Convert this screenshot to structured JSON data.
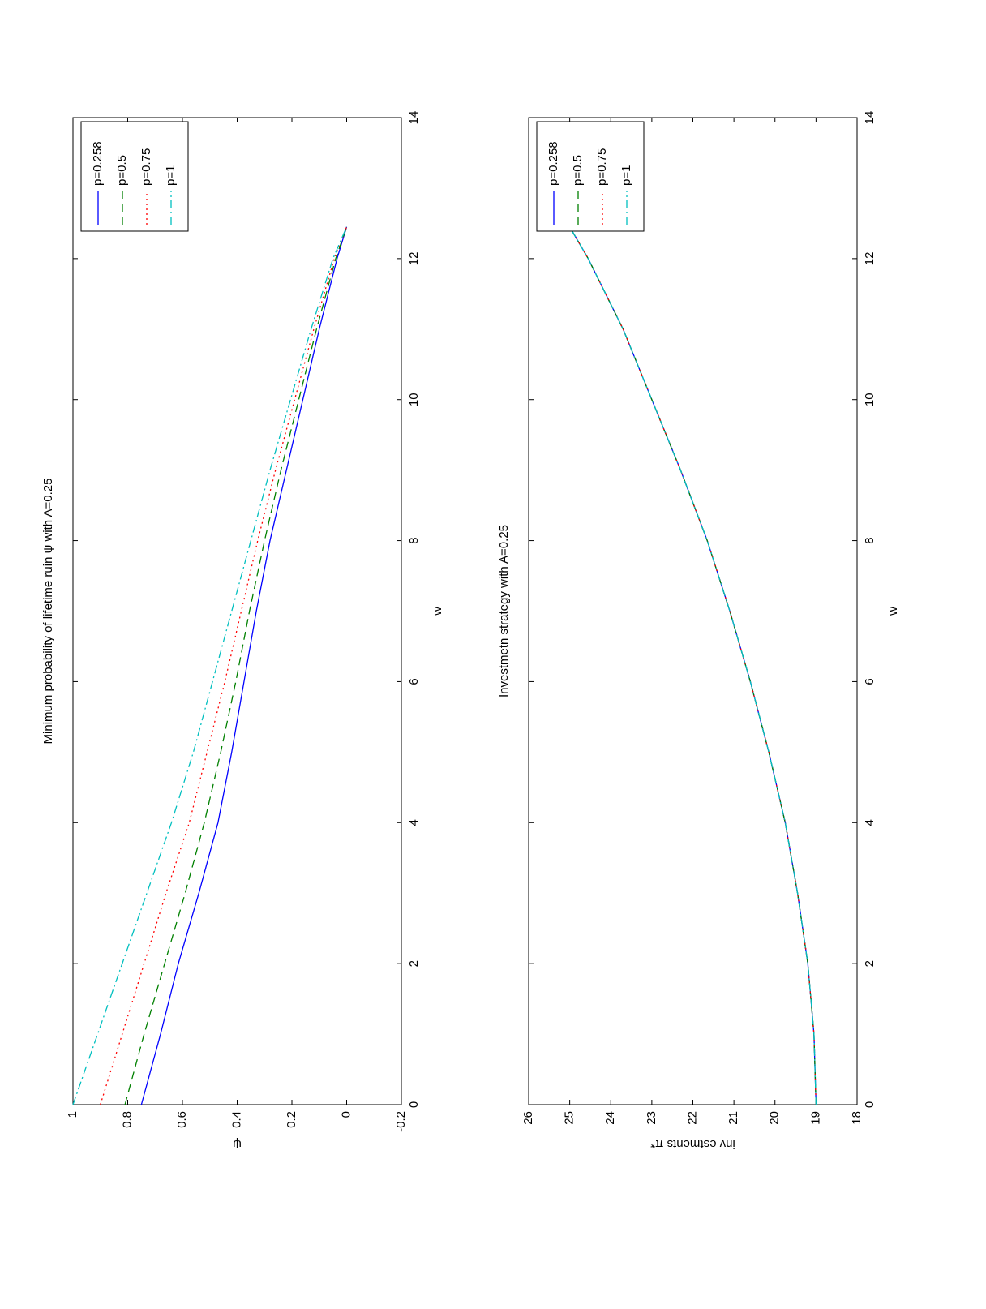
{
  "chart_data": [
    {
      "type": "line",
      "title": "Minimum probability of lifetime ruin ψ with A=0.25",
      "xlabel": "w",
      "ylabel": "ψ",
      "x": [
        0,
        1,
        2,
        3,
        4,
        5,
        6,
        7,
        8,
        9,
        10,
        11,
        12,
        12.45
      ],
      "series": [
        {
          "name": "p=0.258",
          "color": "#0000ff",
          "linestyle": "solid",
          "values": [
            0.75,
            0.68,
            0.615,
            0.54,
            0.47,
            0.42,
            0.375,
            0.33,
            0.28,
            0.22,
            0.16,
            0.1,
            0.035,
            0
          ]
        },
        {
          "name": "p=0.5",
          "color": "#008000",
          "linestyle": "dashed",
          "values": [
            0.81,
            0.74,
            0.665,
            0.59,
            0.52,
            0.46,
            0.405,
            0.355,
            0.3,
            0.24,
            0.175,
            0.11,
            0.04,
            0
          ]
        },
        {
          "name": "p=0.75",
          "color": "#ff0000",
          "linestyle": "dotted",
          "values": [
            0.9,
            0.82,
            0.74,
            0.66,
            0.575,
            0.51,
            0.445,
            0.385,
            0.325,
            0.26,
            0.19,
            0.12,
            0.045,
            0
          ]
        },
        {
          "name": "p=1",
          "color": "#00bfbf",
          "linestyle": "dashdot",
          "values": [
            1,
            0.91,
            0.82,
            0.73,
            0.64,
            0.56,
            0.49,
            0.42,
            0.35,
            0.28,
            0.205,
            0.13,
            0.05,
            0
          ]
        }
      ],
      "xlim": [
        0,
        14
      ],
      "xticks": [
        0,
        2,
        4,
        6,
        8,
        10,
        12,
        14
      ],
      "ylim": [
        -0.2,
        1
      ],
      "yticks": [
        -0.2,
        0,
        0.2,
        0.4,
        0.6,
        0.8,
        1
      ],
      "legend": "northeast",
      "grid": false
    },
    {
      "type": "line",
      "title": "Investmetn strategy with A=0.25",
      "xlabel": "w",
      "ylabel": "inv estments π*",
      "x": [
        0,
        1,
        2,
        3,
        4,
        5,
        6,
        7,
        8,
        9,
        10,
        11,
        12,
        12.45
      ],
      "series": [
        {
          "name": "p=0.258",
          "color": "#0000ff",
          "linestyle": "solid",
          "values": [
            19,
            19.05,
            19.2,
            19.45,
            19.75,
            20.15,
            20.6,
            21.1,
            21.65,
            22.3,
            23,
            23.7,
            24.55,
            25
          ]
        },
        {
          "name": "p=0.5",
          "color": "#008000",
          "linestyle": "dashed",
          "values": [
            19,
            19.05,
            19.2,
            19.45,
            19.75,
            20.15,
            20.6,
            21.1,
            21.65,
            22.3,
            23,
            23.7,
            24.55,
            25
          ]
        },
        {
          "name": "p=0.75",
          "color": "#ff0000",
          "linestyle": "dotted",
          "values": [
            19,
            19.05,
            19.2,
            19.45,
            19.75,
            20.15,
            20.6,
            21.1,
            21.65,
            22.3,
            23,
            23.7,
            24.55,
            25
          ]
        },
        {
          "name": "p=1",
          "color": "#00bfbf",
          "linestyle": "dashdot",
          "values": [
            19,
            19.05,
            19.2,
            19.45,
            19.75,
            20.15,
            20.6,
            21.1,
            21.65,
            22.3,
            23,
            23.7,
            24.55,
            25
          ]
        }
      ],
      "xlim": [
        0,
        14
      ],
      "xticks": [
        0,
        2,
        4,
        6,
        8,
        10,
        12,
        14
      ],
      "ylim": [
        18,
        26
      ],
      "yticks": [
        18,
        19,
        20,
        21,
        22,
        23,
        24,
        25,
        26
      ],
      "legend": "northeast",
      "grid": false
    }
  ]
}
